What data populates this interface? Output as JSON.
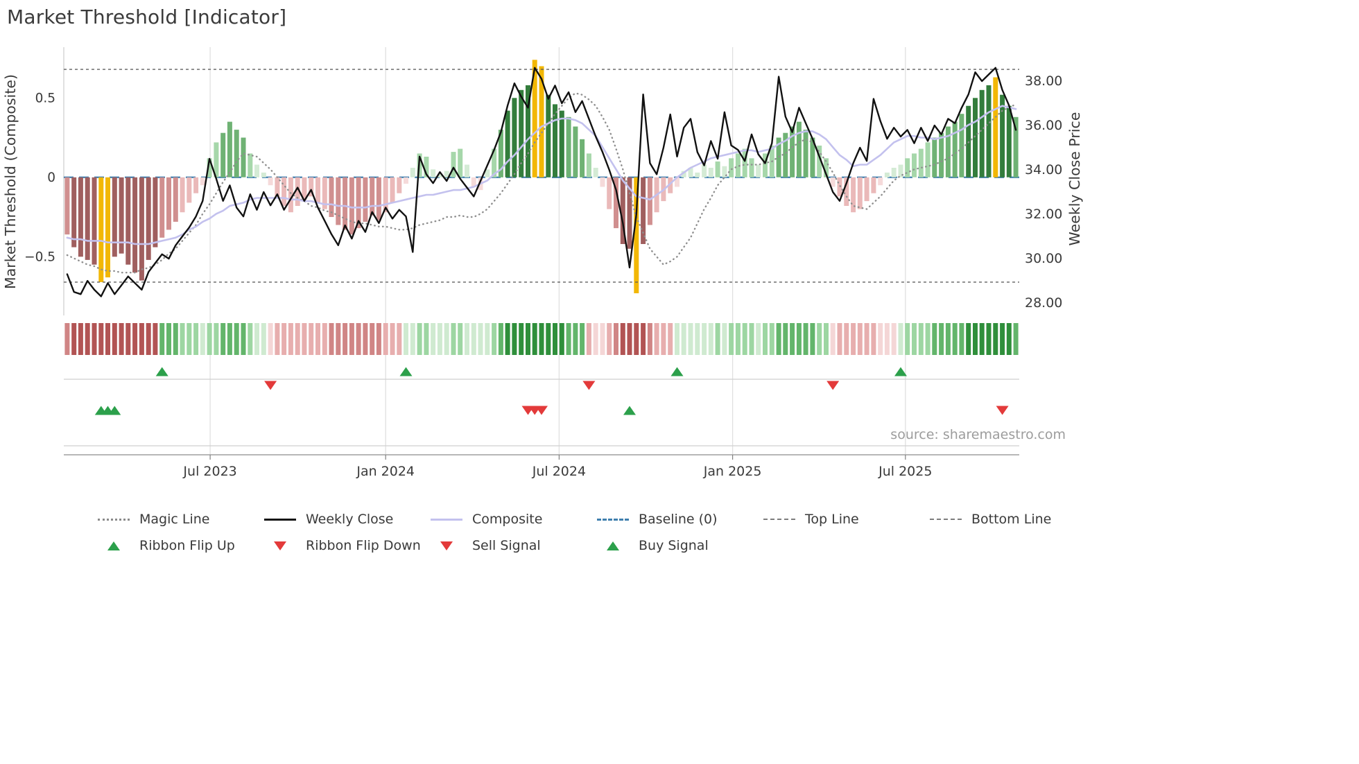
{
  "title": "Market Threshold [Indicator]",
  "source": "source: sharemaestro.com",
  "colors": {
    "weekly_close": "#111111",
    "composite": "#c3c1ee",
    "magic_line": "#8f8f8f",
    "baseline": "#3f7fae",
    "guide_lines": "#5f5f5f",
    "grid": "#e0e0e0",
    "bar_highlight": "#f2b705",
    "bar_green_scale": [
      "#d4ebd5",
      "#a6d7aa",
      "#6fb274",
      "#337d3c"
    ],
    "bar_red_scale": [
      "#f5dada",
      "#eab9b9",
      "#d08f8f",
      "#a05f5f"
    ],
    "ribbon_green_scale": [
      "#cfead0",
      "#9dd6a2",
      "#63b56b",
      "#2f8f3b"
    ],
    "ribbon_red_scale": [
      "#f4d6d6",
      "#e7aeae",
      "#d08585",
      "#b25454"
    ],
    "signal_green": "#2ca04b",
    "signal_red": "#e33a3a",
    "text": "#3a3a3a",
    "muted_text": "#9c9c9c"
  },
  "legend": {
    "row1": [
      {
        "label": "Magic Line",
        "swatch": "dotted-gray"
      },
      {
        "label": "Weekly Close",
        "swatch": "solid-black"
      },
      {
        "label": "Composite",
        "swatch": "solid-purple"
      },
      {
        "label": "Baseline (0)",
        "swatch": "dashed-blue"
      },
      {
        "label": "Top Line",
        "swatch": "dashed-gray"
      },
      {
        "label": "Bottom Line",
        "swatch": "dashed-gray"
      }
    ],
    "row2": [
      {
        "label": "Ribbon Flip Up",
        "swatch": "tri-up"
      },
      {
        "label": "Ribbon Flip Down",
        "swatch": "tri-down"
      },
      {
        "label": "Sell Signal",
        "swatch": "tri-down"
      },
      {
        "label": "Buy Signal",
        "swatch": "tri-up"
      }
    ]
  },
  "chart_data": {
    "type": "bar+line",
    "x_axis": {
      "unit": "week",
      "n_weeks": 141,
      "tick_labels": [
        "Jul 2023",
        "Jan 2024",
        "Jul 2024",
        "Jan 2025",
        "Jul 2025"
      ],
      "tick_week_positions": [
        21.1,
        47.0,
        72.6,
        98.2,
        123.7
      ]
    },
    "left_axis": {
      "label": "Market Threshold (Composite)",
      "tick_labels": [
        "0.5",
        "0",
        "−0.5"
      ],
      "tick_values": [
        0.5,
        0,
        -0.5
      ],
      "ylim": [
        -0.87,
        0.82
      ]
    },
    "right_axis": {
      "label": "Weekly Close Price",
      "tick_labels": [
        "38.00",
        "36.00",
        "34.00",
        "32.00",
        "30.00",
        "28.00"
      ],
      "tick_values": [
        38,
        36,
        34,
        32,
        30,
        28
      ],
      "ylim": [
        27.44,
        39.53
      ]
    },
    "baseline": 0,
    "top_line": 0.68,
    "bottom_line": -0.66,
    "bars": {
      "name": "Market Threshold (Composite)",
      "values": [
        -0.36,
        -0.44,
        -0.5,
        -0.52,
        -0.55,
        -0.66,
        -0.63,
        -0.5,
        -0.48,
        -0.55,
        -0.6,
        -0.65,
        -0.52,
        -0.44,
        -0.38,
        -0.33,
        -0.28,
        -0.22,
        -0.16,
        -0.1,
        -0.05,
        0.12,
        0.22,
        0.28,
        0.35,
        0.3,
        0.25,
        0.15,
        0.08,
        0.03,
        -0.05,
        -0.12,
        -0.18,
        -0.22,
        -0.18,
        -0.14,
        -0.12,
        -0.16,
        -0.2,
        -0.25,
        -0.3,
        -0.33,
        -0.36,
        -0.32,
        -0.28,
        -0.24,
        -0.27,
        -0.22,
        -0.16,
        -0.1,
        -0.04,
        0.06,
        0.15,
        0.13,
        0.05,
        0.02,
        0.04,
        0.16,
        0.18,
        0.08,
        -0.06,
        -0.08,
        0.05,
        0.18,
        0.3,
        0.42,
        0.5,
        0.55,
        0.58,
        0.74,
        0.7,
        0.52,
        0.46,
        0.42,
        0.38,
        0.32,
        0.24,
        0.15,
        0.06,
        -0.06,
        -0.2,
        -0.32,
        -0.42,
        -0.45,
        -0.73,
        -0.42,
        -0.3,
        -0.22,
        -0.15,
        -0.1,
        -0.06,
        0.04,
        0.06,
        0.03,
        0.08,
        0.06,
        0.1,
        0.07,
        0.12,
        0.15,
        0.18,
        0.12,
        0.08,
        0.15,
        0.2,
        0.25,
        0.28,
        0.32,
        0.35,
        0.3,
        0.25,
        0.2,
        0.12,
        -0.06,
        -0.12,
        -0.18,
        -0.22,
        -0.2,
        -0.15,
        -0.1,
        -0.05,
        0.03,
        0.06,
        0.08,
        0.12,
        0.15,
        0.18,
        0.22,
        0.25,
        0.28,
        0.32,
        0.35,
        0.4,
        0.45,
        0.5,
        0.55,
        0.58,
        0.63,
        0.52,
        0.45,
        0.38
      ],
      "highlight_weeks": [
        5,
        6,
        69,
        70,
        84,
        137
      ]
    },
    "series": [
      {
        "name": "Weekly Close",
        "axis": "right",
        "values": [
          29.3,
          28.5,
          28.4,
          29.0,
          28.6,
          28.3,
          28.9,
          28.4,
          28.8,
          29.2,
          28.9,
          28.6,
          29.4,
          29.8,
          30.2,
          30.0,
          30.6,
          31.0,
          31.4,
          31.9,
          32.6,
          34.5,
          33.6,
          32.6,
          33.3,
          32.3,
          31.9,
          32.9,
          32.2,
          33.0,
          32.4,
          32.9,
          32.2,
          32.7,
          33.2,
          32.6,
          33.1,
          32.3,
          31.7,
          31.1,
          30.6,
          31.5,
          30.9,
          31.7,
          31.2,
          32.1,
          31.6,
          32.3,
          31.8,
          32.2,
          31.9,
          30.3,
          34.6,
          33.8,
          33.4,
          33.9,
          33.5,
          34.1,
          33.6,
          33.2,
          32.8,
          33.5,
          34.2,
          34.9,
          35.7,
          36.9,
          37.9,
          37.3,
          36.8,
          38.6,
          38.1,
          37.2,
          37.8,
          37.0,
          37.5,
          36.6,
          37.1,
          36.3,
          35.5,
          34.8,
          34.0,
          33.1,
          31.6,
          29.6,
          32.0,
          37.4,
          34.3,
          33.8,
          35.0,
          36.5,
          34.6,
          35.9,
          36.3,
          34.8,
          34.2,
          35.3,
          34.5,
          36.6,
          35.1,
          34.9,
          34.4,
          35.6,
          34.7,
          34.3,
          35.2,
          38.2,
          36.4,
          35.7,
          36.8,
          36.1,
          35.4,
          34.6,
          33.8,
          33.0,
          32.6,
          33.4,
          34.3,
          35.0,
          34.4,
          37.2,
          36.2,
          35.4,
          35.9,
          35.5,
          35.8,
          35.2,
          35.9,
          35.3,
          36.0,
          35.6,
          36.3,
          36.1,
          36.8,
          37.4,
          38.4,
          38.0,
          38.3,
          38.6,
          37.6,
          36.9,
          35.8
        ]
      },
      {
        "name": "Composite",
        "axis": "left",
        "values": [
          -0.38,
          -0.39,
          -0.39,
          -0.4,
          -0.4,
          -0.4,
          -0.41,
          -0.41,
          -0.41,
          -0.41,
          -0.42,
          -0.42,
          -0.42,
          -0.41,
          -0.4,
          -0.39,
          -0.38,
          -0.36,
          -0.33,
          -0.31,
          -0.28,
          -0.26,
          -0.23,
          -0.21,
          -0.18,
          -0.17,
          -0.16,
          -0.14,
          -0.13,
          -0.13,
          -0.13,
          -0.13,
          -0.13,
          -0.14,
          -0.14,
          -0.15,
          -0.15,
          -0.16,
          -0.17,
          -0.17,
          -0.18,
          -0.18,
          -0.19,
          -0.19,
          -0.19,
          -0.18,
          -0.18,
          -0.17,
          -0.16,
          -0.15,
          -0.14,
          -0.13,
          -0.12,
          -0.11,
          -0.11,
          -0.1,
          -0.09,
          -0.08,
          -0.08,
          -0.07,
          -0.06,
          -0.04,
          -0.02,
          0.02,
          0.05,
          0.1,
          0.14,
          0.19,
          0.24,
          0.28,
          0.32,
          0.34,
          0.36,
          0.37,
          0.37,
          0.36,
          0.34,
          0.3,
          0.26,
          0.19,
          0.12,
          0.05,
          -0.02,
          -0.07,
          -0.12,
          -0.13,
          -0.14,
          -0.11,
          -0.08,
          -0.04,
          0.0,
          0.03,
          0.06,
          0.08,
          0.1,
          0.12,
          0.13,
          0.14,
          0.15,
          0.16,
          0.17,
          0.17,
          0.16,
          0.17,
          0.18,
          0.21,
          0.23,
          0.26,
          0.28,
          0.29,
          0.29,
          0.27,
          0.24,
          0.19,
          0.14,
          0.11,
          0.07,
          0.08,
          0.08,
          0.11,
          0.14,
          0.18,
          0.22,
          0.24,
          0.26,
          0.26,
          0.25,
          0.25,
          0.24,
          0.25,
          0.26,
          0.28,
          0.3,
          0.33,
          0.35,
          0.38,
          0.41,
          0.43,
          0.45,
          0.44,
          0.43
        ]
      },
      {
        "name": "Magic Line",
        "axis": "left",
        "values": [
          -0.49,
          -0.51,
          -0.53,
          -0.55,
          -0.56,
          -0.58,
          -0.59,
          -0.59,
          -0.6,
          -0.6,
          -0.6,
          -0.58,
          -0.57,
          -0.55,
          -0.52,
          -0.48,
          -0.45,
          -0.4,
          -0.35,
          -0.3,
          -0.23,
          -0.17,
          -0.1,
          -0.03,
          0.03,
          0.1,
          0.15,
          0.14,
          0.13,
          0.09,
          0.05,
          0.0,
          -0.05,
          -0.1,
          -0.13,
          -0.15,
          -0.18,
          -0.19,
          -0.21,
          -0.22,
          -0.24,
          -0.26,
          -0.28,
          -0.29,
          -0.29,
          -0.3,
          -0.31,
          -0.31,
          -0.32,
          -0.33,
          -0.33,
          -0.32,
          -0.3,
          -0.29,
          -0.28,
          -0.27,
          -0.25,
          -0.25,
          -0.24,
          -0.25,
          -0.25,
          -0.23,
          -0.2,
          -0.15,
          -0.1,
          -0.04,
          0.02,
          0.09,
          0.15,
          0.22,
          0.28,
          0.34,
          0.4,
          0.45,
          0.5,
          0.53,
          0.52,
          0.49,
          0.45,
          0.38,
          0.3,
          0.18,
          0.05,
          -0.1,
          -0.25,
          -0.35,
          -0.45,
          -0.5,
          -0.55,
          -0.53,
          -0.5,
          -0.44,
          -0.38,
          -0.29,
          -0.2,
          -0.13,
          -0.05,
          0.0,
          0.05,
          0.07,
          0.08,
          0.08,
          0.08,
          0.09,
          0.1,
          0.13,
          0.15,
          0.19,
          0.22,
          0.24,
          0.22,
          0.16,
          0.1,
          0.03,
          -0.05,
          -0.12,
          -0.18,
          -0.19,
          -0.2,
          -0.16,
          -0.12,
          -0.07,
          -0.02,
          0.01,
          0.03,
          0.05,
          0.06,
          0.07,
          0.08,
          0.1,
          0.12,
          0.15,
          0.18,
          0.22,
          0.26,
          0.3,
          0.34,
          0.38,
          0.42,
          0.44,
          0.46
        ]
      }
    ],
    "signals": {
      "ribbon_flip_up_weeks": [
        14,
        50,
        90,
        123
      ],
      "ribbon_flip_down_weeks": [
        30,
        77,
        113
      ],
      "buy_signal_weeks": [
        5,
        6,
        7,
        83
      ],
      "sell_signal_weeks": [
        68,
        69,
        70,
        138
      ]
    }
  }
}
